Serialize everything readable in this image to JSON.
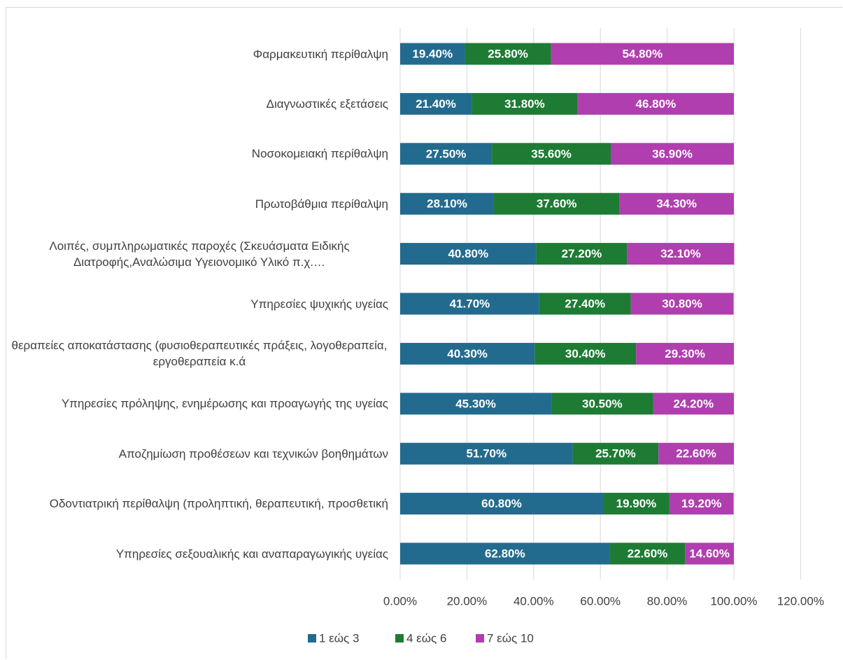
{
  "chart_data": {
    "type": "stacked-bar-horizontal",
    "categories": [
      "Φαρμακευτική περίθαλψη",
      "Διαγνωστικές εξετάσεις",
      "Νοσοκομειακή περίθαλψη",
      "Πρωτοβάθμια περίθαλψη",
      "Λοιπές, συμπληρωματικές παροχές (Σκευάσματα Ειδικής Διατροφής,Αναλώσιμα Υγειονομικό Υλικό π.χ.…",
      "Υπηρεσίες ψυχικής υγείας",
      "θεραπείες αποκατάστασης (φυσιοθεραπευτικές πράξεις, λογοθεραπεία, εργοθεραπεία κ.ά",
      "Υπηρεσίες πρόληψης, ενημέρωσης και προαγωγής της υγείας",
      "Αποζημίωση προθέσεων και τεχνικών βοηθημάτων",
      "Οδοντιατρική περίθαλψη (προληπτική, θεραπευτική, προσθετική",
      "Υπηρεσίες σεξουαλικής και αναπαραγωγικής υγείας"
    ],
    "series": [
      {
        "name": "1 εώς 3",
        "color": "#236b8e",
        "values": [
          19.4,
          21.4,
          27.5,
          28.1,
          40.8,
          41.7,
          40.3,
          45.3,
          51.7,
          60.8,
          62.8
        ],
        "value_labels": [
          "19.40%",
          "21.40%",
          "27.50%",
          "28.10%",
          "40.80%",
          "41.70%",
          "40.30%",
          "45.30%",
          "51.70%",
          "60.80%",
          "62.80%"
        ]
      },
      {
        "name": "4 εώς 6",
        "color": "#1e7b34",
        "values": [
          25.8,
          31.8,
          35.6,
          37.6,
          27.2,
          27.4,
          30.4,
          30.5,
          25.7,
          19.9,
          22.6
        ],
        "value_labels": [
          "25.80%",
          "31.80%",
          "35.60%",
          "37.60%",
          "27.20%",
          "27.40%",
          "30.40%",
          "30.50%",
          "25.70%",
          "19.90%",
          "22.60%"
        ]
      },
      {
        "name": "7 εώς 10",
        "color": "#b03eae",
        "values": [
          54.8,
          46.8,
          36.9,
          34.3,
          32.1,
          30.8,
          29.3,
          24.2,
          22.6,
          19.2,
          14.6
        ],
        "value_labels": [
          "54.80%",
          "46.80%",
          "36.90%",
          "34.30%",
          "32.10%",
          "30.80%",
          "29.30%",
          "24.20%",
          "22.60%",
          "19.20%",
          "14.60%"
        ]
      }
    ],
    "xlim": [
      0,
      120
    ],
    "xticks": [
      {
        "value": 0,
        "label": "0.00%"
      },
      {
        "value": 20,
        "label": "20.00%"
      },
      {
        "value": 40,
        "label": "40.00%"
      },
      {
        "value": 60,
        "label": "60.00%"
      },
      {
        "value": 80,
        "label": "80.00%"
      },
      {
        "value": 100,
        "label": "100.00%"
      },
      {
        "value": 120,
        "label": "120.00%"
      }
    ],
    "grid": true,
    "legend": "bottom"
  }
}
